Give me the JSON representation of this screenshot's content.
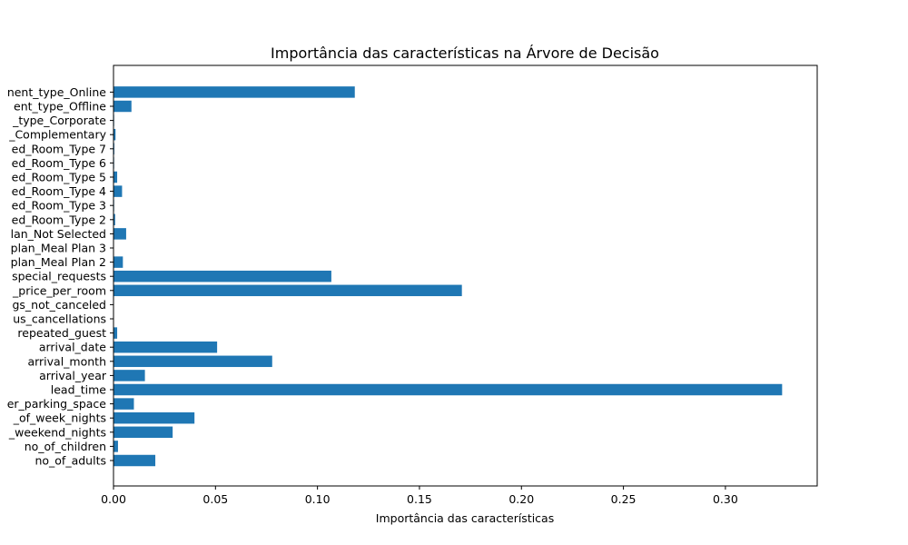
{
  "chart_data": {
    "type": "bar",
    "orientation": "horizontal",
    "title": "Importância das características na Árvore de Decisão",
    "xlabel": "Importância das características",
    "ylabel": "",
    "xlim": [
      0,
      0.345
    ],
    "xticks": [
      0.0,
      0.05,
      0.1,
      0.15,
      0.2,
      0.25,
      0.3
    ],
    "xtick_labels": [
      "0.00",
      "0.05",
      "0.10",
      "0.15",
      "0.20",
      "0.25",
      "0.30"
    ],
    "grid": false,
    "bar_color": "#1f77b4",
    "categories": [
      "no_of_adults",
      "no_of_children",
      "_weekend_nights",
      "_of_week_nights",
      "er_parking_space",
      "lead_time",
      "arrival_year",
      "arrival_month",
      "arrival_date",
      "repeated_guest",
      "us_cancellations",
      "gs_not_canceled",
      "_price_per_room",
      "special_requests",
      "plan_Meal Plan 2",
      "plan_Meal Plan 3",
      "lan_Not Selected",
      "ed_Room_Type 2",
      "ed_Room_Type 3",
      "ed_Room_Type 4",
      "ed_Room_Type 5",
      "ed_Room_Type 6",
      "ed_Room_Type 7",
      "_Complementary",
      "_type_Corporate",
      "ent_type_Offline",
      "nent_type_Online"
    ],
    "values": [
      0.0205,
      0.0022,
      0.029,
      0.0397,
      0.01,
      0.3278,
      0.0154,
      0.0778,
      0.0508,
      0.0018,
      0.0,
      0.0,
      0.1708,
      0.1068,
      0.0046,
      0.0,
      0.0062,
      0.0008,
      0.0003,
      0.0042,
      0.0018,
      0.0003,
      0.0004,
      0.001,
      0.0003,
      0.0088,
      0.1183
    ]
  }
}
